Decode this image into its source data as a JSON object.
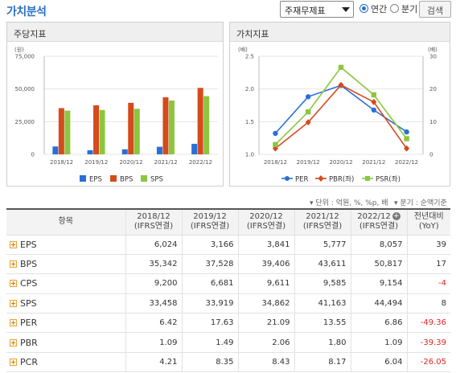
{
  "header": {
    "title": "가치분석",
    "select_value": "주재무제표",
    "radio_annual": "연간",
    "radio_quarter": "분기",
    "search_button": "검색"
  },
  "left_panel": {
    "title": "주당지표"
  },
  "right_panel": {
    "title": "가치지표"
  },
  "colors": {
    "eps": "#2a6fd6",
    "bps": "#d64a1c",
    "sps": "#8cc63f",
    "per": "#2a6fd6",
    "pbr": "#d64a1c",
    "psr": "#8cc63f"
  },
  "chart_data": [
    {
      "type": "bar",
      "unit_label": "(원)",
      "categories": [
        "2018/12",
        "2019/12",
        "2020/12",
        "2021/12",
        "2022/12"
      ],
      "y_ticks": [
        "0",
        "25,000",
        "50,000",
        "75,000"
      ],
      "ylim": [
        0,
        75000
      ],
      "series": [
        {
          "name": "EPS",
          "values": [
            6024,
            3166,
            3841,
            5777,
            8057
          ]
        },
        {
          "name": "BPS",
          "values": [
            35342,
            37528,
            39406,
            43611,
            50817
          ]
        },
        {
          "name": "SPS",
          "values": [
            33458,
            33919,
            34862,
            41163,
            44494
          ]
        }
      ],
      "legend": "bottom",
      "grid": true
    },
    {
      "type": "line",
      "left_unit": "(배)",
      "right_unit": "(배)",
      "categories": [
        "2018/12",
        "2019/12",
        "2020/12",
        "2021/12",
        "2022/12"
      ],
      "left_ticks": [
        "1.0",
        "1.5",
        "2.0",
        "2.5"
      ],
      "right_ticks": [
        "0",
        "10",
        "20",
        "30"
      ],
      "left_ylim": [
        1.0,
        2.5
      ],
      "right_ylim": [
        0,
        30
      ],
      "series": [
        {
          "name": "PER",
          "axis": "right",
          "marker": "circle",
          "values": [
            6.42,
            17.63,
            21.09,
            13.55,
            6.86
          ]
        },
        {
          "name": "PBR(좌)",
          "axis": "left",
          "marker": "diamond",
          "values": [
            1.09,
            1.49,
            2.06,
            1.8,
            1.09
          ]
        },
        {
          "name": "PSR(좌)",
          "axis": "left",
          "marker": "square",
          "values": [
            1.15,
            1.65,
            2.33,
            1.91,
            1.24
          ]
        }
      ],
      "legend": "bottom",
      "grid": true
    }
  ],
  "notes": {
    "unit": "▾ 단위 : 억원, %, %p, 배",
    "quarter": "▾ 분기 : 순액기준"
  },
  "table": {
    "item_header": "항목",
    "columns": [
      {
        "year": "2018/12",
        "basis": "(IFRS연결)"
      },
      {
        "year": "2019/12",
        "basis": "(IFRS연결)"
      },
      {
        "year": "2020/12",
        "basis": "(IFRS연결)"
      },
      {
        "year": "2021/12",
        "basis": "(IFRS연결)"
      },
      {
        "year": "2022/12",
        "basis": "(IFRS연결)"
      }
    ],
    "yoy_header": "전년대비",
    "yoy_sub": "(YoY)",
    "rows": [
      {
        "label": "EPS",
        "values": [
          "6,024",
          "3,166",
          "3,841",
          "5,777",
          "8,057"
        ],
        "yoy": "39"
      },
      {
        "label": "BPS",
        "values": [
          "35,342",
          "37,528",
          "39,406",
          "43,611",
          "50,817"
        ],
        "yoy": "17"
      },
      {
        "label": "CPS",
        "values": [
          "9,200",
          "6,681",
          "9,611",
          "9,585",
          "9,154"
        ],
        "yoy": "-4"
      },
      {
        "label": "SPS",
        "values": [
          "33,458",
          "33,919",
          "34,862",
          "41,163",
          "44,494"
        ],
        "yoy": "8"
      },
      {
        "label": "PER",
        "values": [
          "6.42",
          "17.63",
          "21.09",
          "13.55",
          "6.86"
        ],
        "yoy": "-49.36"
      },
      {
        "label": "PBR",
        "values": [
          "1.09",
          "1.49",
          "2.06",
          "1.80",
          "1.09"
        ],
        "yoy": "-39.39"
      },
      {
        "label": "PCR",
        "values": [
          "4.21",
          "8.35",
          "8.43",
          "8.17",
          "6.04"
        ],
        "yoy": "-26.05"
      }
    ]
  }
}
